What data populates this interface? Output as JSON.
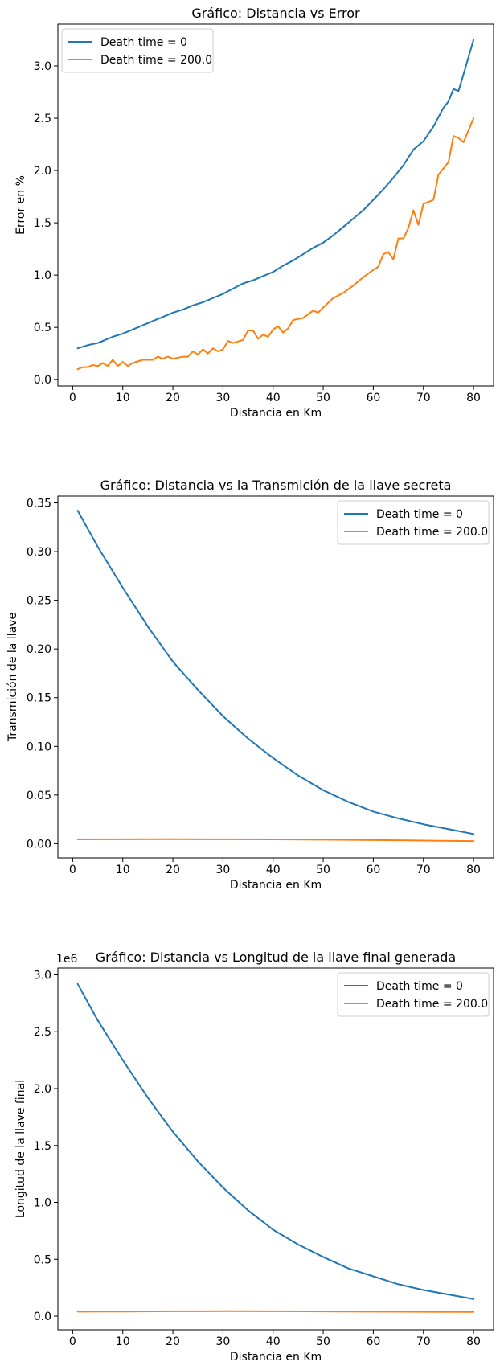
{
  "series_colors": [
    "#1f77b4",
    "#ff7f0e"
  ],
  "chart_data": [
    {
      "type": "line",
      "title": "Gráfico: Distancia vs Error",
      "xlabel": "Distancia en Km",
      "ylabel": "Error en %",
      "xlim": [
        -2.95,
        84
      ],
      "ylim": [
        -0.06,
        3.4
      ],
      "xticks": [
        0,
        10,
        20,
        30,
        40,
        50,
        60,
        70,
        80
      ],
      "yticks": [
        0.0,
        0.5,
        1.0,
        1.5,
        2.0,
        2.5,
        3.0
      ],
      "ytick_labels": [
        "0.0",
        "0.5",
        "1.0",
        "1.5",
        "2.0",
        "2.5",
        "3.0"
      ],
      "legend_position": "upper-left",
      "grid": false,
      "series": [
        {
          "name": "Death time = 0",
          "x": [
            1,
            3,
            5,
            6,
            8,
            10,
            12,
            14,
            16,
            18,
            20,
            22,
            24,
            26,
            28,
            30,
            32,
            34,
            36,
            38,
            40,
            42,
            44,
            46,
            48,
            50,
            52,
            54,
            56,
            58,
            60,
            62,
            64,
            66,
            68,
            70,
            72,
            74,
            75,
            76,
            77,
            78,
            80
          ],
          "y": [
            0.3,
            0.33,
            0.35,
            0.37,
            0.41,
            0.44,
            0.48,
            0.52,
            0.56,
            0.6,
            0.64,
            0.67,
            0.71,
            0.74,
            0.78,
            0.82,
            0.87,
            0.92,
            0.95,
            0.99,
            1.03,
            1.09,
            1.14,
            1.2,
            1.26,
            1.31,
            1.38,
            1.46,
            1.54,
            1.62,
            1.72,
            1.82,
            1.93,
            2.05,
            2.2,
            2.28,
            2.42,
            2.6,
            2.66,
            2.78,
            2.76,
            2.92,
            3.25
          ]
        },
        {
          "name": "Death time = 200.0",
          "x": [
            1,
            2,
            3,
            4,
            5,
            6,
            7,
            8,
            9,
            10,
            11,
            12,
            14,
            16,
            17,
            18,
            19,
            20,
            22,
            23,
            24,
            25,
            26,
            27,
            28,
            29,
            30,
            31,
            32,
            34,
            35,
            36,
            37,
            38,
            39,
            40,
            41,
            42,
            43,
            44,
            46,
            48,
            49,
            50,
            52,
            54,
            56,
            58,
            60,
            61,
            62,
            63,
            64,
            65,
            66,
            67,
            68,
            69,
            70,
            72,
            73,
            75,
            76,
            77,
            78,
            80
          ],
          "y": [
            0.1,
            0.12,
            0.12,
            0.14,
            0.13,
            0.16,
            0.13,
            0.19,
            0.13,
            0.17,
            0.13,
            0.16,
            0.19,
            0.19,
            0.22,
            0.2,
            0.22,
            0.2,
            0.22,
            0.22,
            0.27,
            0.24,
            0.29,
            0.25,
            0.3,
            0.27,
            0.29,
            0.37,
            0.35,
            0.38,
            0.47,
            0.47,
            0.39,
            0.43,
            0.41,
            0.48,
            0.51,
            0.45,
            0.49,
            0.57,
            0.59,
            0.66,
            0.64,
            0.69,
            0.78,
            0.83,
            0.9,
            0.98,
            1.05,
            1.08,
            1.2,
            1.22,
            1.15,
            1.35,
            1.35,
            1.45,
            1.62,
            1.48,
            1.68,
            1.72,
            1.96,
            2.08,
            2.33,
            2.31,
            2.27,
            2.5
          ]
        }
      ]
    },
    {
      "type": "line",
      "title": "Gráfico: Distancia vs la Transmición de la llave secreta",
      "xlabel": "Distancia en Km",
      "ylabel": "Transmición de la llave",
      "xlim": [
        -2.95,
        84
      ],
      "ylim": [
        -0.0145,
        0.357
      ],
      "xticks": [
        0,
        10,
        20,
        30,
        40,
        50,
        60,
        70,
        80
      ],
      "yticks": [
        0.0,
        0.05,
        0.1,
        0.15,
        0.2,
        0.25,
        0.3,
        0.35
      ],
      "ytick_labels": [
        "0.00",
        "0.05",
        "0.10",
        "0.15",
        "0.20",
        "0.25",
        "0.30",
        "0.35"
      ],
      "legend_position": "upper-right",
      "grid": false,
      "series": [
        {
          "name": "Death time = 0",
          "x": [
            1,
            5,
            10,
            15,
            20,
            25,
            30,
            35,
            40,
            45,
            50,
            55,
            60,
            65,
            70,
            75,
            80
          ],
          "y": [
            0.342,
            0.305,
            0.263,
            0.223,
            0.187,
            0.158,
            0.131,
            0.108,
            0.088,
            0.07,
            0.055,
            0.043,
            0.033,
            0.026,
            0.02,
            0.015,
            0.01
          ]
        },
        {
          "name": "Death time = 200.0",
          "x": [
            1,
            10,
            20,
            30,
            40,
            50,
            60,
            70,
            80
          ],
          "y": [
            0.0045,
            0.0046,
            0.0047,
            0.0046,
            0.0045,
            0.0042,
            0.0038,
            0.0033,
            0.0027
          ]
        }
      ]
    },
    {
      "type": "line",
      "title": "Gráfico: Distancia vs Longitud de la llave final generada",
      "xlabel": "Distancia en Km",
      "ylabel": "Longitud de la llave final",
      "offset_text": "1e6",
      "xlim": [
        -2.95,
        84
      ],
      "ylim": [
        -0.12,
        3.06
      ],
      "xticks": [
        0,
        10,
        20,
        30,
        40,
        50,
        60,
        70,
        80
      ],
      "yticks": [
        0.0,
        0.5,
        1.0,
        1.5,
        2.0,
        2.5,
        3.0
      ],
      "ytick_labels": [
        "0.0",
        "0.5",
        "1.0",
        "1.5",
        "2.0",
        "2.5",
        "3.0"
      ],
      "legend_position": "upper-right",
      "grid": false,
      "series": [
        {
          "name": "Death time = 0",
          "x": [
            1,
            5,
            10,
            15,
            20,
            25,
            30,
            35,
            40,
            45,
            50,
            55,
            60,
            65,
            70,
            75,
            80
          ],
          "y": [
            2.92,
            2.6,
            2.25,
            1.92,
            1.62,
            1.36,
            1.13,
            0.93,
            0.76,
            0.63,
            0.52,
            0.42,
            0.35,
            0.28,
            0.23,
            0.19,
            0.15
          ]
        },
        {
          "name": "Death time = 200.0",
          "x": [
            1,
            10,
            20,
            30,
            40,
            50,
            60,
            70,
            80
          ],
          "y": [
            0.04,
            0.041,
            0.043,
            0.044,
            0.043,
            0.042,
            0.04,
            0.038,
            0.037
          ]
        }
      ]
    }
  ]
}
